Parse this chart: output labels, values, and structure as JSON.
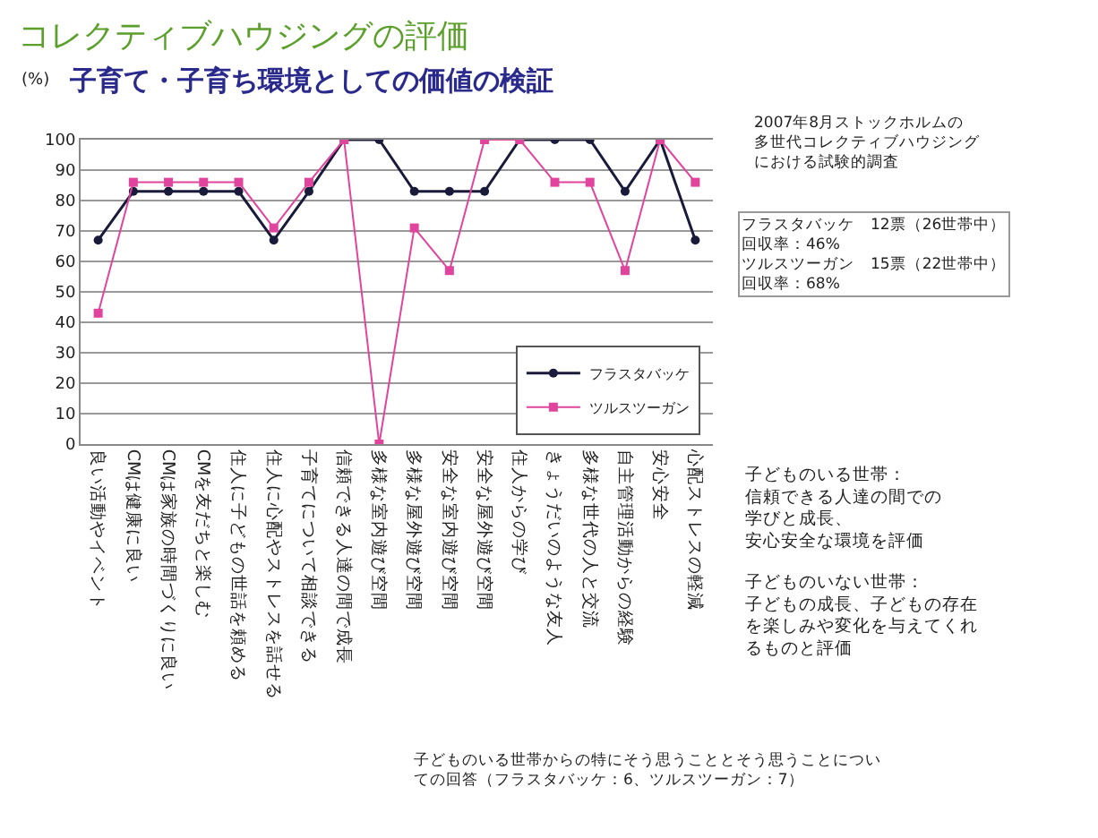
{
  "chart_data": {
    "type": "line",
    "title": "コレクティブハウジングの評価",
    "subtitle": "子育て・子育ち環境としての価値の検証",
    "ylabel": "(%)",
    "categories": [
      "良い活動やイベント",
      "CMは健康に良い",
      "CMは家族の時間づくりに良い",
      "CMを友だちと楽しむ",
      "住人に子どもの世話を頼める",
      "住人に心配やストレスを話せる",
      "子育てについて相談できる",
      "信頼できる人達の間で成長",
      "多様な室内遊び空間",
      "多様な屋外遊び空間",
      "安全な室内遊び空間",
      "安全な屋外遊び空間",
      "住人からの学び",
      "きょうだいのような友人",
      "多様な世代の人と交流",
      "自主管理活動からの経験",
      "安心安全",
      "心配ストレスの軽減"
    ],
    "series": [
      {
        "name": "フラスタバッケ",
        "color": "#1a1a3a",
        "marker": "circle",
        "values": [
          67,
          83,
          83,
          83,
          83,
          67,
          83,
          100,
          100,
          83,
          83,
          83,
          100,
          100,
          100,
          83,
          100,
          67
        ]
      },
      {
        "name": "ツルスツーガン",
        "color": "#e0449c",
        "marker": "square",
        "values": [
          43,
          86,
          86,
          86,
          86,
          71,
          86,
          100,
          0,
          71,
          57,
          100,
          100,
          86,
          86,
          57,
          100,
          86
        ]
      }
    ],
    "ylim": [
      0,
      100
    ],
    "yticks": [
      0,
      10,
      20,
      30,
      40,
      50,
      60,
      70,
      80,
      90,
      100
    ],
    "grid": "y",
    "legend": "bottom right",
    "annotations": [
      "2007年8月ストックホルムの多世代コレクティブハウジングにおける試験的調査",
      "フラスタバッケ　12票（26世帯中）回収率：46%ツルスツーガン　15票（22世帯中）回収率：68%",
      "子どものいる世帯：信頼できる人達の間での学びと成長、安心安全な環境を評価",
      "子どものいない世帯：子どもの成長、子どもの存在を楽しみや変化を与えてくれるものと評価",
      "子どものいる世帯からの特にそう思うこととそう思うことについての回答（フラスタバッケ：6、ツルスツーガン：7）"
    ]
  }
}
